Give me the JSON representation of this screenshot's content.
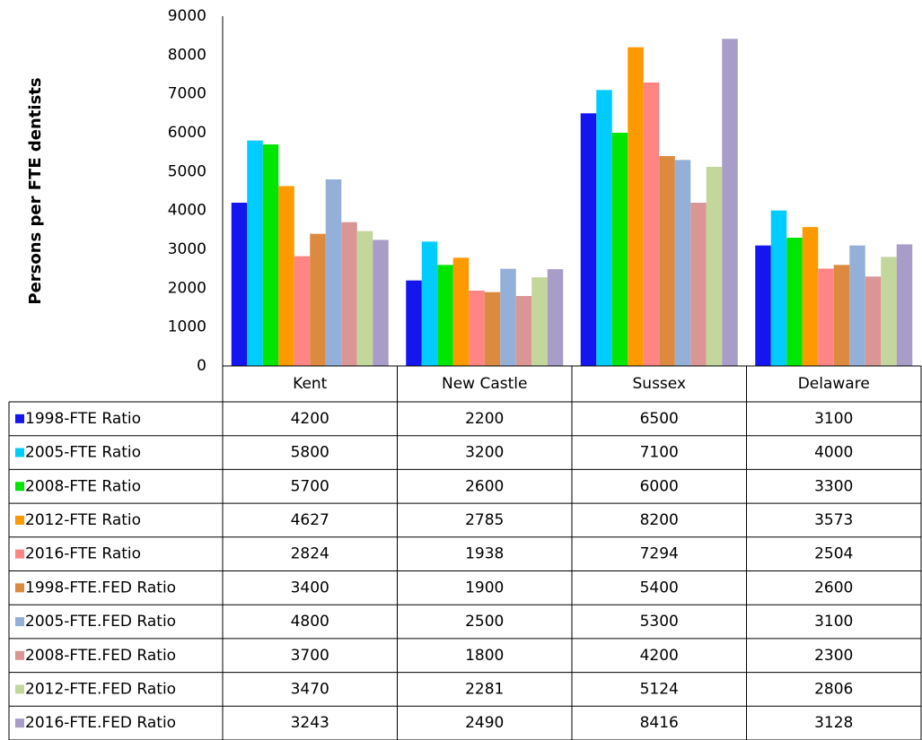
{
  "chart_data": {
    "type": "bar",
    "y_axis_label": "Persons per FTE dentists",
    "categories": [
      "Kent",
      "New Castle",
      "Sussex",
      "Delaware"
    ],
    "ylim": [
      0,
      9000
    ],
    "yticks": [
      0,
      1000,
      2000,
      3000,
      4000,
      5000,
      6000,
      7000,
      8000,
      9000
    ],
    "grid": false,
    "series": [
      {
        "name": "1998-FTE Ratio",
        "color": "#1515f0",
        "values": [
          4200,
          2200,
          6500,
          3100
        ]
      },
      {
        "name": "2005-FTE Ratio",
        "color": "#00ccff",
        "values": [
          5800,
          3200,
          7100,
          4000
        ]
      },
      {
        "name": "2008-FTE Ratio",
        "color": "#00e600",
        "values": [
          5700,
          2600,
          6000,
          3300
        ]
      },
      {
        "name": "2012-FTE Ratio",
        "color": "#ff9900",
        "values": [
          4627,
          2785,
          8200,
          3573
        ]
      },
      {
        "name": "2016-FTE Ratio",
        "color": "#ff8585",
        "values": [
          2824,
          1938,
          7294,
          2504
        ]
      },
      {
        "name": "1998-FTE.FED Ratio",
        "color": "#db8a40",
        "values": [
          3400,
          1900,
          5400,
          2600
        ]
      },
      {
        "name": "2005-FTE.FED Ratio",
        "color": "#95b0d8",
        "values": [
          4800,
          2500,
          5300,
          3100
        ]
      },
      {
        "name": "2008-FTE.FED Ratio",
        "color": "#d99694",
        "values": [
          3700,
          1800,
          4200,
          2300
        ]
      },
      {
        "name": "2012-FTE.FED Ratio",
        "color": "#c3d69b",
        "values": [
          3470,
          2281,
          5124,
          2806
        ]
      },
      {
        "name": "2016-FTE.FED Ratio",
        "color": "#a89cc8",
        "values": [
          3243,
          2490,
          8416,
          3128
        ]
      }
    ]
  }
}
